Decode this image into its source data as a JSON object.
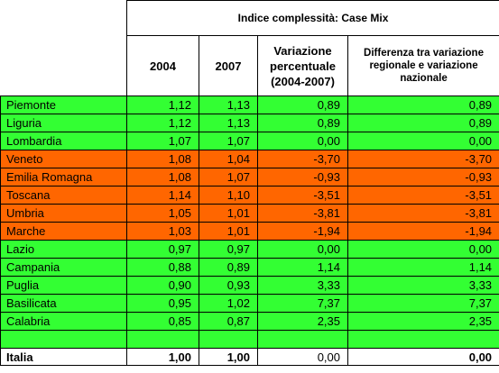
{
  "colors": {
    "green": "#33ff33",
    "orange": "#ff6600"
  },
  "header": {
    "title": "Indice complessità: Case Mix",
    "col_2004": "2004",
    "col_2007": "2007",
    "col_variation": "Variazione percentuale (2004-2007)",
    "col_difference": "Differenza tra variazione regionale e variazione nazionale"
  },
  "rows": [
    {
      "region": "Piemonte",
      "y2004": "1,12",
      "y2007": "1,13",
      "variation": "0,89",
      "difference": "0,89",
      "color": "green"
    },
    {
      "region": "Liguria",
      "y2004": "1,12",
      "y2007": "1,13",
      "variation": "0,89",
      "difference": "0,89",
      "color": "green"
    },
    {
      "region": "Lombardia",
      "y2004": "1,07",
      "y2007": "1,07",
      "variation": "0,00",
      "difference": "0,00",
      "color": "green"
    },
    {
      "region": "Veneto",
      "y2004": "1,08",
      "y2007": "1,04",
      "variation": "-3,70",
      "difference": "-3,70",
      "color": "orange"
    },
    {
      "region": "Emilia Romagna",
      "y2004": "1,08",
      "y2007": "1,07",
      "variation": "-0,93",
      "difference": "-0,93",
      "color": "orange"
    },
    {
      "region": "Toscana",
      "y2004": "1,14",
      "y2007": "1,10",
      "variation": "-3,51",
      "difference": "-3,51",
      "color": "orange"
    },
    {
      "region": "Umbria",
      "y2004": "1,05",
      "y2007": "1,01",
      "variation": "-3,81",
      "difference": "-3,81",
      "color": "orange"
    },
    {
      "region": "Marche",
      "y2004": "1,03",
      "y2007": "1,01",
      "variation": "-1,94",
      "difference": "-1,94",
      "color": "orange"
    },
    {
      "region": "Lazio",
      "y2004": "0,97",
      "y2007": "0,97",
      "variation": "0,00",
      "difference": "0,00",
      "color": "green"
    },
    {
      "region": "Campania",
      "y2004": "0,88",
      "y2007": "0,89",
      "variation": "1,14",
      "difference": "1,14",
      "color": "green"
    },
    {
      "region": "Puglia",
      "y2004": "0,90",
      "y2007": "0,93",
      "variation": "3,33",
      "difference": "3,33",
      "color": "green"
    },
    {
      "region": "Basilicata",
      "y2004": "0,95",
      "y2007": "1,02",
      "variation": "7,37",
      "difference": "7,37",
      "color": "green"
    },
    {
      "region": "Calabria",
      "y2004": "0,85",
      "y2007": "0,87",
      "variation": "2,35",
      "difference": "2,35",
      "color": "green"
    }
  ],
  "spacer_color": "green",
  "total": {
    "region": "Italia",
    "y2004": "1,00",
    "y2007": "1,00",
    "variation": "0,00",
    "difference": "0,00"
  }
}
